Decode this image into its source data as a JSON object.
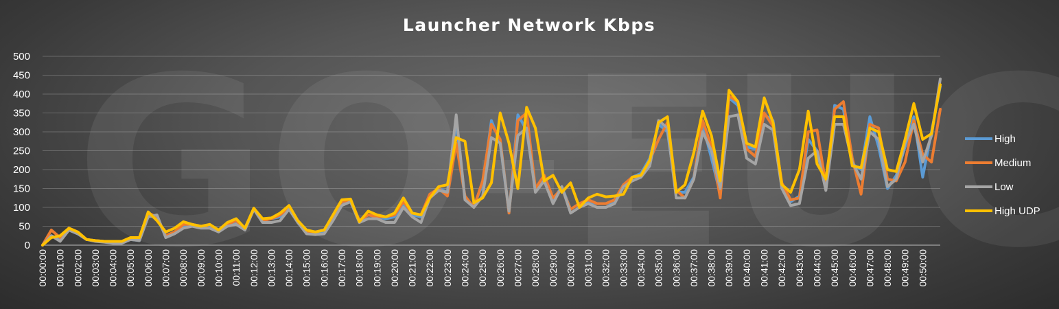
{
  "chart_data": {
    "type": "line",
    "title": "Launcher Network Kbps",
    "watermark": "GO-EUC",
    "ylim": [
      0,
      500
    ],
    "yticks": [
      0,
      50,
      100,
      150,
      200,
      250,
      300,
      350,
      400,
      450,
      500
    ],
    "xtick_labels": [
      "00:00:00",
      "00:01:00",
      "00:02:00",
      "00:03:00",
      "00:04:00",
      "00:05:00",
      "00:06:00",
      "00:07:00",
      "00:08:00",
      "00:09:00",
      "00:10:00",
      "00:11:00",
      "00:12:00",
      "00:13:00",
      "00:14:00",
      "00:15:00",
      "00:16:00",
      "00:17:00",
      "00:18:00",
      "00:19:00",
      "00:20:00",
      "00:21:00",
      "00:22:00",
      "00:23:00",
      "00:24:00",
      "00:25:00",
      "00:26:00",
      "00:27:00",
      "00:28:00",
      "00:29:00",
      "00:30:00",
      "00:31:00",
      "00:32:00",
      "00:33:00",
      "00:34:00",
      "00:35:00",
      "00:36:00",
      "00:37:00",
      "00:38:00",
      "00:39:00",
      "00:40:00",
      "00:41:00",
      "00:42:00",
      "00:43:00",
      "00:44:00",
      "00:45:00",
      "00:46:00",
      "00:47:00",
      "00:48:00",
      "00:49:00",
      "00:50:00"
    ],
    "points_per_minute": 2,
    "grid": true,
    "legend_position": "right",
    "series": [
      {
        "name": "High",
        "color": "#5b9bd5",
        "values": [
          0,
          25,
          15,
          40,
          30,
          15,
          12,
          10,
          8,
          8,
          15,
          12,
          80,
          70,
          25,
          35,
          50,
          55,
          50,
          50,
          40,
          55,
          60,
          45,
          95,
          65,
          70,
          75,
          100,
          60,
          35,
          30,
          35,
          70,
          110,
          115,
          65,
          80,
          75,
          70,
          75,
          110,
          80,
          75,
          130,
          150,
          140,
          330,
          120,
          105,
          160,
          330,
          270,
          85,
          345,
          305,
          145,
          180,
          120,
          155,
          95,
          110,
          115,
          110,
          110,
          115,
          155,
          180,
          190,
          230,
          320,
          300,
          140,
          140,
          180,
          320,
          230,
          135,
          390,
          370,
          260,
          255,
          345,
          330,
          150,
          115,
          130,
          280,
          250,
          155,
          370,
          360,
          215,
          200,
          340,
          260,
          150,
          185,
          260,
          340,
          180,
          300,
          420
        ]
      },
      {
        "name": "Medium",
        "color": "#ed7d31",
        "values": [
          0,
          40,
          20,
          45,
          35,
          15,
          12,
          10,
          8,
          8,
          15,
          15,
          85,
          75,
          25,
          35,
          55,
          55,
          50,
          45,
          40,
          55,
          65,
          45,
          95,
          65,
          70,
          80,
          100,
          65,
          35,
          35,
          40,
          75,
          115,
          120,
          65,
          80,
          75,
          75,
          80,
          115,
          85,
          80,
          135,
          150,
          130,
          270,
          130,
          100,
          170,
          320,
          280,
          85,
          330,
          350,
          150,
          185,
          125,
          150,
          95,
          110,
          120,
          110,
          110,
          120,
          160,
          180,
          185,
          225,
          280,
          325,
          145,
          125,
          175,
          330,
          260,
          125,
          395,
          380,
          255,
          235,
          350,
          315,
          165,
          120,
          125,
          300,
          305,
          160,
          360,
          380,
          230,
          135,
          320,
          310,
          175,
          170,
          220,
          330,
          240,
          220,
          360
        ]
      },
      {
        "name": "Low",
        "color": "#a5a5a5",
        "values": [
          0,
          25,
          10,
          40,
          30,
          15,
          10,
          8,
          5,
          5,
          15,
          12,
          75,
          80,
          20,
          30,
          45,
          50,
          45,
          45,
          35,
          50,
          55,
          40,
          95,
          60,
          60,
          65,
          95,
          60,
          30,
          28,
          30,
          65,
          105,
          115,
          60,
          70,
          70,
          60,
          60,
          100,
          75,
          60,
          125,
          145,
          140,
          345,
          120,
          100,
          130,
          285,
          270,
          90,
          290,
          310,
          140,
          170,
          110,
          155,
          85,
          100,
          110,
          100,
          100,
          110,
          155,
          170,
          180,
          210,
          330,
          310,
          125,
          125,
          175,
          300,
          250,
          150,
          340,
          345,
          230,
          215,
          320,
          305,
          150,
          105,
          110,
          230,
          250,
          145,
          320,
          320,
          220,
          175,
          300,
          280,
          155,
          175,
          270,
          320,
          220,
          290,
          440
        ]
      },
      {
        "name": "High UDP",
        "color": "#ffc000",
        "values": [
          0,
          20,
          25,
          45,
          35,
          15,
          12,
          10,
          10,
          10,
          20,
          20,
          88,
          65,
          35,
          45,
          62,
          55,
          50,
          55,
          40,
          60,
          70,
          45,
          98,
          70,
          72,
          85,
          105,
          65,
          40,
          35,
          40,
          80,
          120,
          122,
          62,
          90,
          80,
          75,
          85,
          125,
          85,
          80,
          125,
          155,
          160,
          285,
          275,
          112,
          125,
          165,
          350,
          270,
          150,
          365,
          310,
          170,
          185,
          140,
          165,
          100,
          125,
          135,
          128,
          130,
          135,
          180,
          185,
          225,
          325,
          340,
          140,
          160,
          245,
          355,
          290,
          170,
          410,
          380,
          270,
          260,
          390,
          325,
          160,
          140,
          200,
          355,
          215,
          175,
          340,
          340,
          210,
          205,
          310,
          300,
          200,
          195,
          280,
          375,
          280,
          295,
          425
        ]
      }
    ]
  }
}
